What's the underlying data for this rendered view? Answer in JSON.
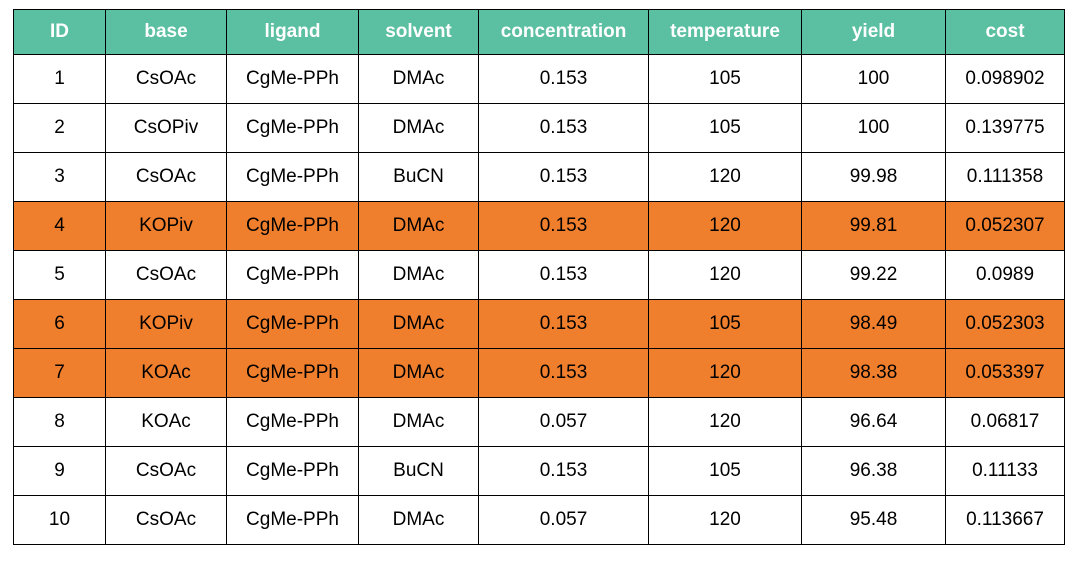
{
  "chart_data": {
    "type": "table",
    "columns": [
      "ID",
      "base",
      "ligand",
      "solvent",
      "concentration",
      "temperature",
      "yield",
      "cost"
    ],
    "rows": [
      [
        "1",
        "CsOAc",
        "CgMe-PPh",
        "DMAc",
        "0.153",
        "105",
        "100",
        "0.098902"
      ],
      [
        "2",
        "CsOPiv",
        "CgMe-PPh",
        "DMAc",
        "0.153",
        "105",
        "100",
        "0.139775"
      ],
      [
        "3",
        "CsOAc",
        "CgMe-PPh",
        "BuCN",
        "0.153",
        "120",
        "99.98",
        "0.111358"
      ],
      [
        "4",
        "KOPiv",
        "CgMe-PPh",
        "DMAc",
        "0.153",
        "120",
        "99.81",
        "0.052307"
      ],
      [
        "5",
        "CsOAc",
        "CgMe-PPh",
        "DMAc",
        "0.153",
        "120",
        "99.22",
        "0.0989"
      ],
      [
        "6",
        "KOPiv",
        "CgMe-PPh",
        "DMAc",
        "0.153",
        "105",
        "98.49",
        "0.052303"
      ],
      [
        "7",
        "KOAc",
        "CgMe-PPh",
        "DMAc",
        "0.153",
        "120",
        "98.38",
        "0.053397"
      ],
      [
        "8",
        "KOAc",
        "CgMe-PPh",
        "DMAc",
        "0.057",
        "120",
        "96.64",
        "0.06817"
      ],
      [
        "9",
        "CsOAc",
        "CgMe-PPh",
        "BuCN",
        "0.153",
        "105",
        "96.38",
        "0.11133"
      ],
      [
        "10",
        "CsOAc",
        "CgMe-PPh",
        "DMAc",
        "0.057",
        "120",
        "95.48",
        "0.113667"
      ]
    ],
    "highlighted_rows": [
      3,
      5,
      6
    ]
  },
  "colors": {
    "header_bg": "#5bbfa1",
    "header_text": "#ffffff",
    "highlight_bg": "#f07f2d",
    "row_bg": "#ffffff",
    "border": "#000000"
  }
}
